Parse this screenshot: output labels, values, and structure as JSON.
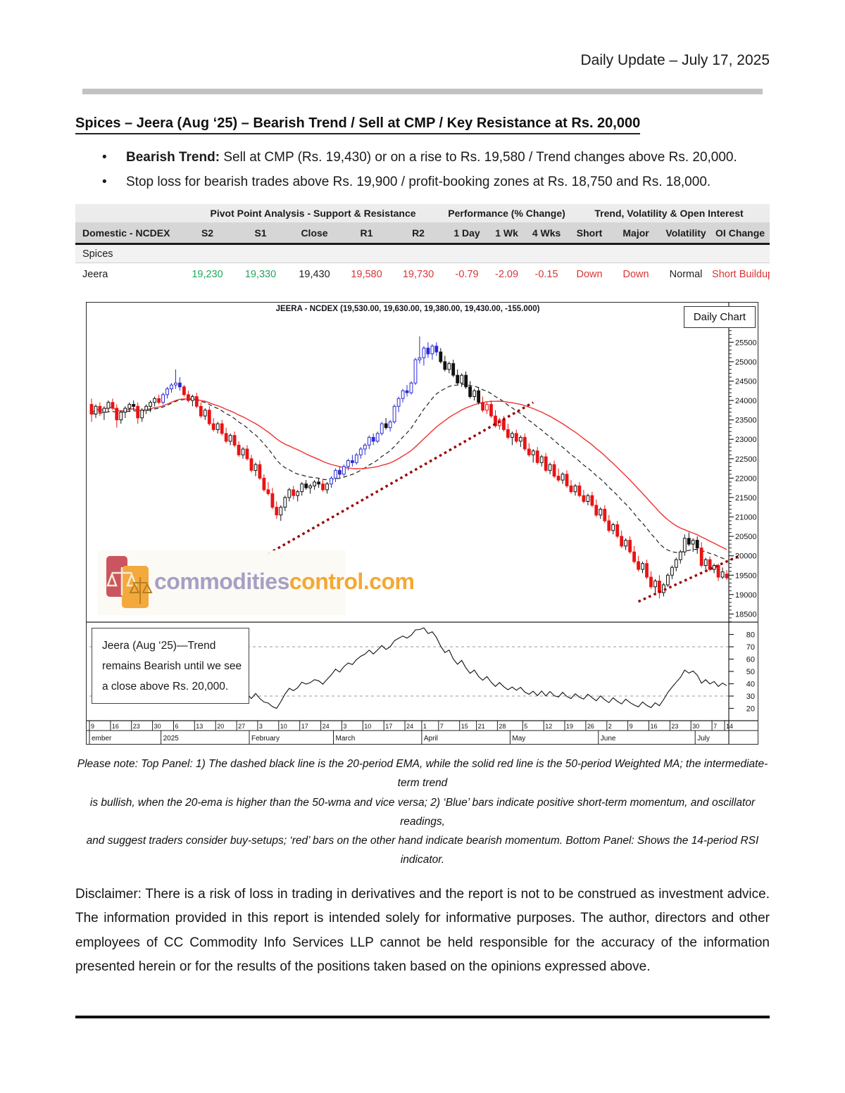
{
  "header": {
    "date_line": "Daily Update – July 17, 2025"
  },
  "section": {
    "title": "Spices – Jeera (Aug  ‘25) – Bearish Trend / Sell at CMP / Key Resistance at Rs. 20,000",
    "bullets": [
      {
        "lead": "Bearish Trend:",
        "text": " Sell at CMP (Rs. 19,430) or on a rise to Rs. 19,580 / Trend changes above Rs. 20,000."
      },
      {
        "lead": "",
        "text": "Stop loss for bearish trades above Rs. 19,900 / profit-booking zones at Rs. 18,750 and Rs. 18,000."
      }
    ]
  },
  "table": {
    "group_headers": [
      "Pivot Point Analysis - Support & Resistance",
      "Performance (% Change)",
      "Trend, Volatility & Open Interest"
    ],
    "columns": [
      "Domestic - NCDEX",
      "S2",
      "S1",
      "Close",
      "R1",
      "R2",
      "1 Day",
      "1 Wk",
      "4 Wks",
      "Short",
      "Major",
      "Volatility",
      "OI Change"
    ],
    "section_row": "Spices",
    "palette": {
      "positive": "#1fa95c",
      "negative": "#d93636"
    },
    "rows": [
      {
        "name": "Jeera",
        "s2": "19,230",
        "s1": "19,330",
        "close": "19,430",
        "r1": "19,580",
        "r2": "19,730",
        "d1": "-0.79",
        "w1": "-2.09",
        "w4": "-0.15",
        "short": "Down",
        "major": "Down",
        "vol": "Normal",
        "oi": "Short Buildup"
      }
    ]
  },
  "chart_data": {
    "type": "candlestick",
    "title": "JEERA - NCDEX (19,530.00, 19,630.00, 19,380.00, 19,430.00, -155.000)",
    "badge": "Daily Chart",
    "annotation": "Jeera (Aug  ‘25)—Trend remains Bearish until we see a close above Rs. 20,000.",
    "watermark": [
      "commodities",
      "control.com"
    ],
    "panels": [
      "price",
      "rsi"
    ],
    "price_axis": {
      "min": 18290,
      "max": 26430,
      "ticks": [
        18500,
        19000,
        19500,
        20000,
        20500,
        21000,
        21500,
        22000,
        22500,
        23000,
        23500,
        24000,
        24500,
        25000,
        25500
      ],
      "minor_step": 100
    },
    "rsi_axis": {
      "min": 10,
      "max": 90,
      "ticks": [
        20,
        30,
        40,
        50,
        60,
        70,
        80
      ],
      "dashed_levels": [
        30,
        70
      ]
    },
    "indicators": {
      "ema_period": 20,
      "wma_period": 50,
      "rsi_period": 14
    },
    "colors": {
      "bull_momentum": "#2b2bd4",
      "bear_momentum": "#e81414",
      "neutral": "#111111",
      "wma_line": "#f03232",
      "ema_line": "#222222",
      "trendline": "#990000",
      "rsi_line": "#111111"
    },
    "x_ticks": [
      [
        "9",
        0
      ],
      [
        "16",
        5
      ],
      [
        "23",
        10
      ],
      [
        "30",
        15
      ],
      [
        "6",
        20
      ],
      [
        "13",
        25
      ],
      [
        "20",
        30
      ],
      [
        "27",
        35
      ],
      [
        "3",
        40
      ],
      [
        "10",
        45
      ],
      [
        "17",
        50
      ],
      [
        "24",
        55
      ],
      [
        "3",
        60
      ],
      [
        "10",
        65
      ],
      [
        "17",
        70
      ],
      [
        "24",
        75
      ],
      [
        "1",
        79
      ],
      [
        "7",
        83
      ],
      [
        "15",
        88
      ],
      [
        "21",
        92
      ],
      [
        "28",
        97
      ],
      [
        "5",
        103
      ],
      [
        "12",
        108
      ],
      [
        "19",
        113
      ],
      [
        "26",
        118
      ],
      [
        "2",
        123
      ],
      [
        "9",
        128
      ],
      [
        "16",
        133
      ],
      [
        "23",
        138
      ],
      [
        "30",
        143
      ],
      [
        "7",
        148
      ],
      [
        "14",
        151
      ]
    ],
    "months": [
      [
        "ember",
        0
      ],
      [
        "2025",
        17
      ],
      [
        "February",
        38
      ],
      [
        "March",
        58
      ],
      [
        "April",
        79
      ],
      [
        "May",
        100
      ],
      [
        "June",
        121
      ],
      [
        "July",
        144
      ]
    ],
    "trendlines": [
      [
        [
          42,
          20050
        ],
        [
          105,
          23950
        ]
      ],
      [
        [
          130,
          18820
        ],
        [
          154,
          20000
        ]
      ]
    ],
    "candles": [
      [
        23900,
        24050,
        23450,
        23650,
        "r"
      ],
      [
        23650,
        23900,
        23550,
        23850,
        "k"
      ],
      [
        23850,
        23950,
        23600,
        23700,
        "r"
      ],
      [
        23700,
        23850,
        23500,
        23800,
        "k"
      ],
      [
        23800,
        24000,
        23700,
        23950,
        "k"
      ],
      [
        23950,
        24050,
        23750,
        23800,
        "r"
      ],
      [
        23800,
        23900,
        23300,
        23500,
        "r"
      ],
      [
        23500,
        23750,
        23400,
        23700,
        "k"
      ],
      [
        23700,
        23850,
        23550,
        23800,
        "k"
      ],
      [
        23800,
        23950,
        23700,
        23900,
        "k"
      ],
      [
        23900,
        24000,
        23750,
        23850,
        "k"
      ],
      [
        23850,
        23950,
        23400,
        23550,
        "r"
      ],
      [
        23550,
        23800,
        23450,
        23750,
        "k"
      ],
      [
        23750,
        23900,
        23650,
        23850,
        "k"
      ],
      [
        23850,
        24000,
        23700,
        23950,
        "k"
      ],
      [
        23950,
        24100,
        23850,
        24050,
        "k"
      ],
      [
        24050,
        24150,
        23900,
        23950,
        "r"
      ],
      [
        23950,
        24200,
        23900,
        24150,
        "b"
      ],
      [
        24150,
        24350,
        24050,
        24300,
        "b"
      ],
      [
        24300,
        24450,
        24200,
        24400,
        "b"
      ],
      [
        24400,
        24800,
        24300,
        24450,
        "b"
      ],
      [
        24450,
        24600,
        24250,
        24350,
        "b"
      ],
      [
        24350,
        24400,
        24100,
        24150,
        "r"
      ],
      [
        24150,
        24250,
        23950,
        24000,
        "r"
      ],
      [
        24000,
        24150,
        23850,
        24100,
        "k"
      ],
      [
        24100,
        24200,
        23800,
        23850,
        "r"
      ],
      [
        23850,
        23950,
        23550,
        23600,
        "r"
      ],
      [
        23600,
        23800,
        23500,
        23750,
        "k"
      ],
      [
        23750,
        23850,
        23350,
        23400,
        "r"
      ],
      [
        23400,
        23550,
        23200,
        23250,
        "r"
      ],
      [
        23250,
        23450,
        23150,
        23400,
        "k"
      ],
      [
        23400,
        23500,
        23100,
        23150,
        "r"
      ],
      [
        23150,
        23300,
        22900,
        22950,
        "r"
      ],
      [
        22950,
        23150,
        22850,
        23100,
        "k"
      ],
      [
        23100,
        23200,
        22800,
        22850,
        "r"
      ],
      [
        22850,
        22950,
        22550,
        22600,
        "r"
      ],
      [
        22600,
        22800,
        22500,
        22750,
        "k"
      ],
      [
        22750,
        22850,
        22450,
        22500,
        "r"
      ],
      [
        22500,
        22600,
        22150,
        22200,
        "r"
      ],
      [
        22200,
        22400,
        22050,
        22350,
        "k"
      ],
      [
        22350,
        22450,
        21950,
        22000,
        "r"
      ],
      [
        22000,
        22100,
        21650,
        21700,
        "r"
      ],
      [
        21700,
        21900,
        21550,
        21600,
        "r"
      ],
      [
        21600,
        21750,
        21200,
        21250,
        "r"
      ],
      [
        21250,
        21400,
        20950,
        21050,
        "r"
      ],
      [
        21050,
        21300,
        20900,
        21250,
        "k"
      ],
      [
        21250,
        21550,
        21150,
        21500,
        "k"
      ],
      [
        21500,
        21750,
        21400,
        21700,
        "k"
      ],
      [
        21700,
        21800,
        21450,
        21550,
        "r"
      ],
      [
        21550,
        21700,
        21400,
        21650,
        "k"
      ],
      [
        21650,
        21900,
        21550,
        21850,
        "k"
      ],
      [
        21850,
        21950,
        21700,
        21750,
        "k"
      ],
      [
        21750,
        21850,
        21600,
        21800,
        "k"
      ],
      [
        21800,
        21950,
        21700,
        21900,
        "k"
      ],
      [
        21900,
        22000,
        21750,
        21850,
        "k"
      ],
      [
        21850,
        21950,
        21650,
        21700,
        "r"
      ],
      [
        21700,
        21900,
        21600,
        21850,
        "k"
      ],
      [
        21850,
        22050,
        21750,
        22000,
        "b"
      ],
      [
        22000,
        22250,
        21900,
        22200,
        "b"
      ],
      [
        22200,
        22300,
        22000,
        22100,
        "b"
      ],
      [
        22100,
        22350,
        22050,
        22300,
        "b"
      ],
      [
        22300,
        22500,
        22200,
        22450,
        "b"
      ],
      [
        22450,
        22600,
        22300,
        22400,
        "b"
      ],
      [
        22400,
        22650,
        22350,
        22600,
        "b"
      ],
      [
        22600,
        22800,
        22500,
        22750,
        "b"
      ],
      [
        22750,
        22900,
        22600,
        22850,
        "b"
      ],
      [
        22850,
        23100,
        22750,
        23050,
        "b"
      ],
      [
        23050,
        23150,
        22850,
        22950,
        "b"
      ],
      [
        22950,
        23200,
        22900,
        23150,
        "b"
      ],
      [
        23150,
        23450,
        23100,
        23400,
        "b"
      ],
      [
        23400,
        23550,
        23250,
        23300,
        "k"
      ],
      [
        23300,
        23500,
        23200,
        23450,
        "b"
      ],
      [
        23450,
        23900,
        23400,
        23850,
        "b"
      ],
      [
        23850,
        24100,
        23700,
        24050,
        "b"
      ],
      [
        24050,
        24300,
        23950,
        24250,
        "b"
      ],
      [
        24250,
        24400,
        24100,
        24200,
        "b"
      ],
      [
        24200,
        24500,
        24150,
        24450,
        "b"
      ],
      [
        24450,
        25100,
        24400,
        25050,
        "b"
      ],
      [
        25050,
        25650,
        24950,
        25100,
        "b"
      ],
      [
        25100,
        25400,
        24900,
        25350,
        "b"
      ],
      [
        25350,
        25500,
        25100,
        25200,
        "b"
      ],
      [
        25200,
        25450,
        25050,
        25400,
        "b"
      ],
      [
        25400,
        25500,
        25150,
        25250,
        "b"
      ],
      [
        25250,
        25350,
        24950,
        25000,
        "k"
      ],
      [
        25000,
        25150,
        24750,
        24800,
        "k"
      ],
      [
        24800,
        25000,
        24700,
        24950,
        "k"
      ],
      [
        24950,
        25050,
        24600,
        24650,
        "k"
      ],
      [
        24650,
        24800,
        24400,
        24450,
        "k"
      ],
      [
        24450,
        24700,
        24350,
        24650,
        "k"
      ],
      [
        24650,
        24750,
        24300,
        24350,
        "k"
      ],
      [
        24350,
        24500,
        24050,
        24100,
        "k"
      ],
      [
        24100,
        24300,
        24000,
        24250,
        "k"
      ],
      [
        24250,
        24350,
        23900,
        23950,
        "k"
      ],
      [
        23950,
        24100,
        23700,
        23750,
        "r"
      ],
      [
        23750,
        23950,
        23650,
        23900,
        "r"
      ],
      [
        23900,
        24000,
        23550,
        23600,
        "r"
      ],
      [
        23600,
        23750,
        23300,
        23350,
        "r"
      ],
      [
        23350,
        23550,
        23250,
        23500,
        "r"
      ],
      [
        23500,
        23600,
        23200,
        23250,
        "r"
      ],
      [
        23250,
        23400,
        23000,
        23050,
        "r"
      ],
      [
        23050,
        23200,
        22850,
        23150,
        "k"
      ],
      [
        23150,
        23250,
        22900,
        22950,
        "r"
      ],
      [
        22950,
        23100,
        22800,
        23050,
        "k"
      ],
      [
        23050,
        23150,
        22700,
        22750,
        "r"
      ],
      [
        22750,
        22900,
        22550,
        22600,
        "r"
      ],
      [
        22600,
        22750,
        22400,
        22700,
        "k"
      ],
      [
        22700,
        22800,
        22350,
        22400,
        "r"
      ],
      [
        22400,
        22600,
        22300,
        22550,
        "k"
      ],
      [
        22550,
        22650,
        22150,
        22200,
        "r"
      ],
      [
        22200,
        22400,
        22100,
        22350,
        "k"
      ],
      [
        22350,
        22450,
        22000,
        22050,
        "r"
      ],
      [
        22050,
        22250,
        21900,
        21950,
        "r"
      ],
      [
        21950,
        22150,
        21850,
        22100,
        "k"
      ],
      [
        22100,
        22200,
        21750,
        21800,
        "r"
      ],
      [
        21800,
        21950,
        21600,
        21650,
        "r"
      ],
      [
        21650,
        21850,
        21550,
        21800,
        "k"
      ],
      [
        21800,
        21900,
        21500,
        21550,
        "r"
      ],
      [
        21550,
        21700,
        21350,
        21400,
        "r"
      ],
      [
        21400,
        21600,
        21300,
        21550,
        "k"
      ],
      [
        21550,
        21650,
        21250,
        21300,
        "r"
      ],
      [
        21300,
        21450,
        21000,
        21050,
        "r"
      ],
      [
        21050,
        21250,
        20950,
        21200,
        "k"
      ],
      [
        21200,
        21300,
        20850,
        20900,
        "r"
      ],
      [
        20900,
        21050,
        20600,
        20650,
        "r"
      ],
      [
        20650,
        20850,
        20550,
        20800,
        "k"
      ],
      [
        20800,
        20900,
        20450,
        20500,
        "r"
      ],
      [
        20500,
        20650,
        20200,
        20250,
        "r"
      ],
      [
        20250,
        20450,
        20150,
        20400,
        "k"
      ],
      [
        20400,
        20500,
        20050,
        20100,
        "r"
      ],
      [
        20100,
        20250,
        19800,
        19850,
        "r"
      ],
      [
        19850,
        20000,
        19600,
        19650,
        "r"
      ],
      [
        19650,
        19850,
        19550,
        19800,
        "k"
      ],
      [
        19800,
        19900,
        19400,
        19450,
        "r"
      ],
      [
        19450,
        19600,
        19150,
        19200,
        "r"
      ],
      [
        19200,
        19400,
        19050,
        19350,
        "k"
      ],
      [
        19350,
        19500,
        18900,
        19050,
        "r"
      ],
      [
        19050,
        19300,
        18950,
        19250,
        "k"
      ],
      [
        19250,
        19550,
        19200,
        19500,
        "k"
      ],
      [
        19500,
        19750,
        19400,
        19700,
        "k"
      ],
      [
        19700,
        19950,
        19600,
        19900,
        "k"
      ],
      [
        19900,
        20150,
        19800,
        20100,
        "k"
      ],
      [
        20100,
        20550,
        20000,
        20450,
        "k"
      ],
      [
        20450,
        20600,
        20250,
        20300,
        "k"
      ],
      [
        20300,
        20450,
        20100,
        20400,
        "k"
      ],
      [
        20400,
        20500,
        20050,
        20200,
        "k"
      ],
      [
        20200,
        20350,
        19700,
        19750,
        "r"
      ],
      [
        19750,
        19950,
        19650,
        19900,
        "k"
      ],
      [
        19900,
        19980,
        19600,
        19650,
        "r"
      ],
      [
        19650,
        19800,
        19550,
        19750,
        "k"
      ],
      [
        19750,
        19800,
        19350,
        19450,
        "r"
      ],
      [
        19450,
        19700,
        19400,
        19585,
        "k"
      ],
      [
        19530,
        19630,
        19380,
        19430,
        "r"
      ]
    ]
  },
  "note": {
    "lines": [
      "Please note: Top Panel: 1) The dashed black line is the 20-period EMA, while the solid red line is the 50-period Weighted MA; the intermediate-term trend",
      "is bullish, when the 20-ema is higher than the 50-wma and vice versa; 2) ‘Blue’ bars indicate positive short-term momentum, and oscillator readings,",
      "and suggest traders consider buy-setups; ‘red’ bars on the other hand indicate bearish momentum. Bottom Panel: Shows the 14-period RSI indicator."
    ]
  },
  "disclaimer": "Disclaimer: There is a risk of loss in trading in derivatives and the report is not to be construed as investment advice. The information provided in this report is intended solely for informative purposes. The author, directors and other employees of CC Commodity Info Services LLP cannot be held responsible for the accuracy of the information presented herein or for the results of the positions taken based on the opinions expressed above."
}
